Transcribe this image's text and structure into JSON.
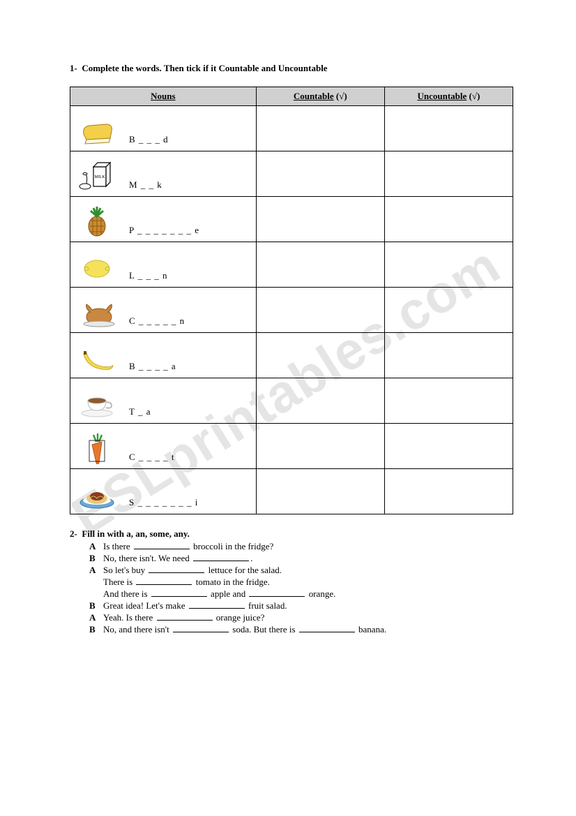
{
  "watermark": "ESLprintables.com",
  "q1": {
    "number": "1-",
    "title": "Complete the words. Then tick if it Countable and Uncountable",
    "headers": {
      "nouns": "Nouns",
      "countable": "Countable",
      "uncountable": "Uncountable",
      "tick": "(√)"
    },
    "rows": [
      {
        "icon": "bread",
        "word": "B _ _ _ d"
      },
      {
        "icon": "milk",
        "word": "M _ _ k"
      },
      {
        "icon": "pineapple",
        "word": "P _ _ _ _ _ _ _ e"
      },
      {
        "icon": "lemon",
        "word": "L _ _ _ n"
      },
      {
        "icon": "chicken",
        "word": "C _ _ _ _ _ n"
      },
      {
        "icon": "banana",
        "word": "B _ _ _ _ a"
      },
      {
        "icon": "tea",
        "word": "T _ a"
      },
      {
        "icon": "carrot",
        "word": "C _ _ _ _ t"
      },
      {
        "icon": "spaghetti",
        "word": "S _ _ _ _ _ _ _ i"
      }
    ]
  },
  "q2": {
    "number": "2-",
    "title": "Fill in with a, an, some, any.",
    "dialog": [
      {
        "sp": "A",
        "parts": [
          "Is there ",
          "@",
          " broccoli in the fridge?"
        ]
      },
      {
        "sp": "B",
        "parts": [
          "No, there isn't. We need ",
          "@",
          "."
        ]
      },
      {
        "sp": "A",
        "parts": [
          "So let's buy ",
          "@",
          " lettuce for the salad."
        ]
      },
      {
        "sp": "",
        "parts": [
          "There is ",
          "@",
          " tomato in the fridge."
        ]
      },
      {
        "sp": "",
        "parts": [
          "And there is ",
          "@",
          " apple and ",
          "@",
          " orange."
        ]
      },
      {
        "sp": "B",
        "parts": [
          "Great idea! Let's make ",
          "@",
          " fruit salad."
        ]
      },
      {
        "sp": "A",
        "parts": [
          "Yeah. Is there ",
          "@",
          " orange juice?"
        ]
      },
      {
        "sp": "B",
        "parts": [
          "No, and there isn't ",
          "@",
          " soda. But there is ",
          "@",
          " banana."
        ]
      }
    ]
  },
  "colors": {
    "header_bg": "#d0d0d0",
    "border": "#000000",
    "watermark": "rgba(0,0,0,0.10)",
    "bread": "#f3cf4a",
    "milk_box": "#ffffff",
    "pineapple_body": "#cc8a2e",
    "pineapple_leaf": "#2f8f2f",
    "lemon": "#f5e25a",
    "chicken": "#c9873f",
    "banana": "#f3da4a",
    "tea_cup": "#ffffff",
    "tea_liquid": "#8b5a2b",
    "carrot": "#e8772e",
    "carrot_leaf": "#3a9a3a",
    "spaghetti": "#8b3a1f",
    "plate": "#6aa8d8"
  }
}
